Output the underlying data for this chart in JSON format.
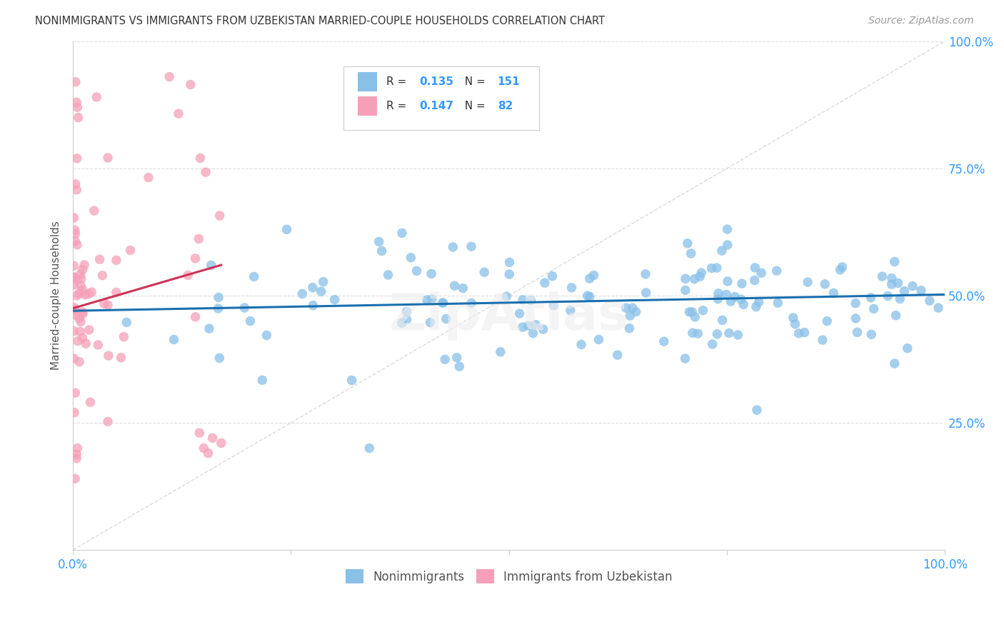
{
  "title": "NONIMMIGRANTS VS IMMIGRANTS FROM UZBEKISTAN MARRIED-COUPLE HOUSEHOLDS CORRELATION CHART",
  "source": "Source: ZipAtlas.com",
  "ylabel": "Married-couple Households",
  "blue_R": 0.135,
  "blue_N": 151,
  "pink_R": 0.147,
  "pink_N": 82,
  "blue_color": "#88c0e8",
  "pink_color": "#f5a0b8",
  "trend_blue": "#1a6faf",
  "trend_pink": "#cc3355",
  "axis_label_color": "#3399ff",
  "watermark": "ZipAtlas",
  "legend_label1": "Nonimmigrants",
  "legend_label2": "Immigrants from Uzbekistan"
}
